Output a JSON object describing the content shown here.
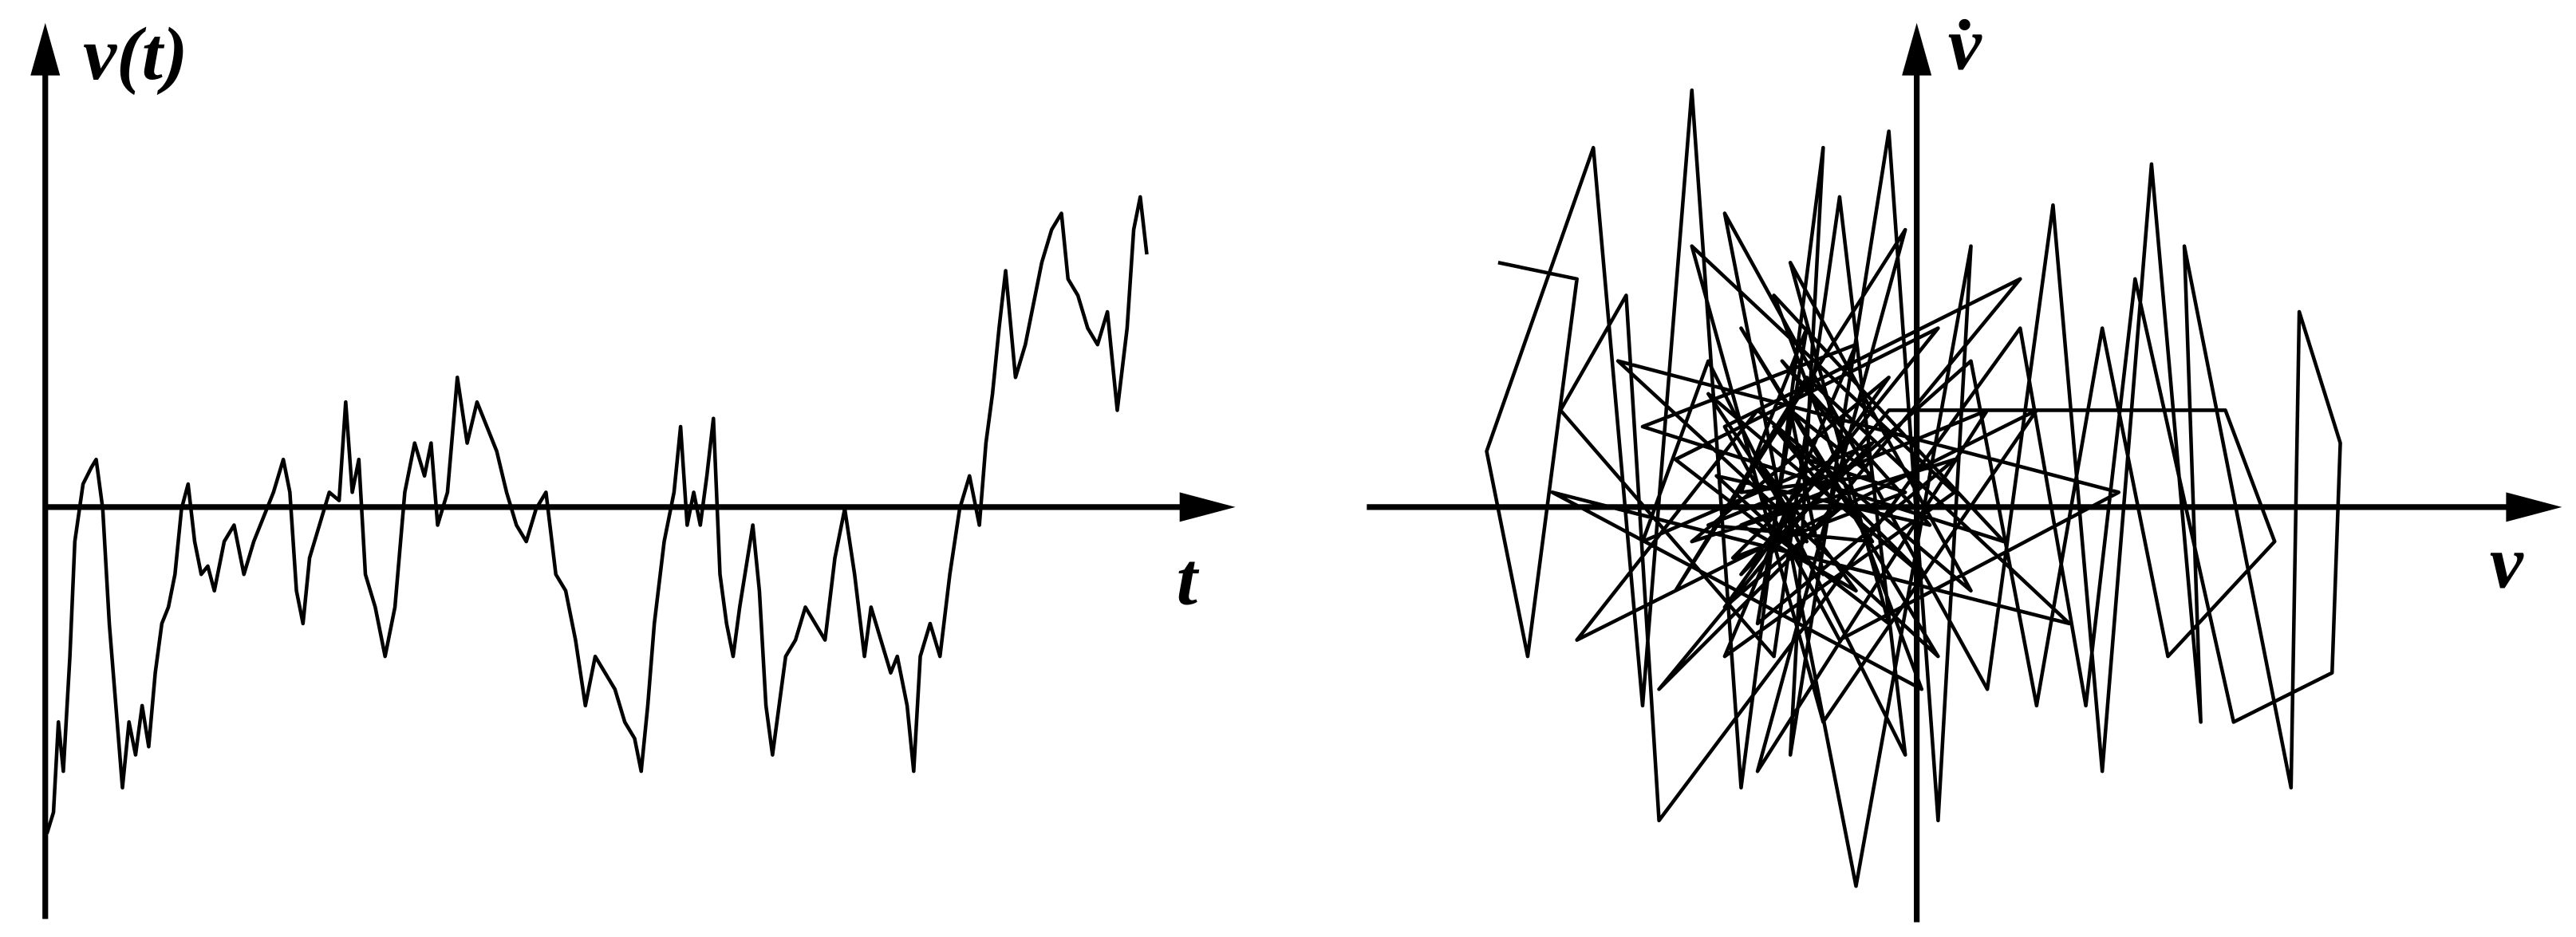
{
  "left_panel": {
    "y_label": "v(t)",
    "x_label": "t"
  },
  "right_panel": {
    "y_label": "v̇",
    "x_label": "v"
  }
}
